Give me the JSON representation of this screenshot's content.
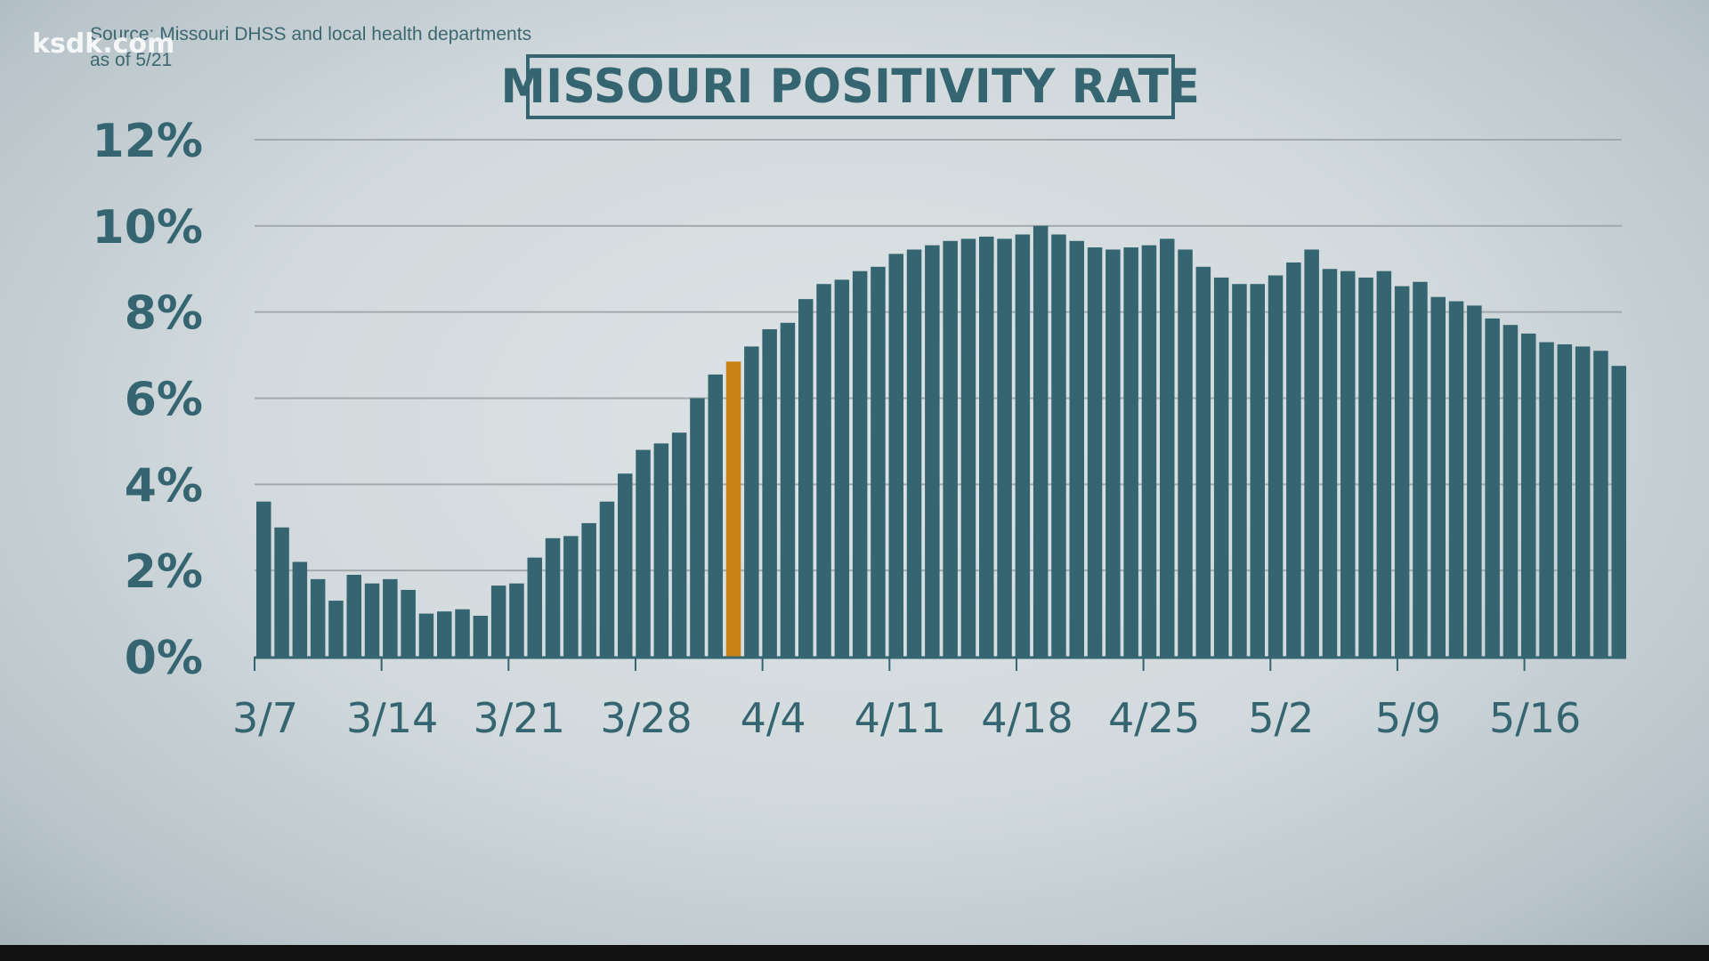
{
  "watermark": "ksdk.com",
  "source_line1": "Source: Missouri DHSS and local health departments",
  "source_line2": "as of 5/21",
  "title": "MISSOURI POSITIVITY RATE",
  "colors": {
    "bar": "#356570",
    "highlight": "#c98418",
    "text": "#356570",
    "grid": "#a3aaad"
  },
  "chart_data": {
    "type": "bar",
    "title": "MISSOURI POSITIVITY RATE",
    "xlabel": "",
    "ylabel": "",
    "ylim": [
      0,
      12
    ],
    "y_ticks": [
      "0%",
      "2%",
      "4%",
      "6%",
      "8%",
      "10%",
      "12%"
    ],
    "y_tick_values": [
      0,
      2,
      4,
      6,
      8,
      10,
      12
    ],
    "grid": true,
    "x_tick_labels": [
      "3/7",
      "3/14",
      "3/21",
      "3/28",
      "4/4",
      "4/11",
      "4/18",
      "4/25",
      "5/2",
      "5/9",
      "5/16"
    ],
    "x_tick_indices": [
      0,
      7,
      14,
      21,
      28,
      35,
      42,
      49,
      56,
      63,
      70
    ],
    "start_date": "3/7",
    "end_date": "5/21",
    "highlight_index": 26,
    "highlight_date": "4/2",
    "series": [
      {
        "name": "Positivity rate (%)",
        "values": [
          3.6,
          3.0,
          2.2,
          1.8,
          1.3,
          1.9,
          1.7,
          1.8,
          1.55,
          1.0,
          1.05,
          1.1,
          0.95,
          1.65,
          1.7,
          2.3,
          2.75,
          2.8,
          3.1,
          3.6,
          4.25,
          4.8,
          4.95,
          5.2,
          6.0,
          6.55,
          6.85,
          7.2,
          7.6,
          7.75,
          8.3,
          8.65,
          8.75,
          8.95,
          9.05,
          9.35,
          9.45,
          9.55,
          9.65,
          9.7,
          9.75,
          9.7,
          9.8,
          10.0,
          9.8,
          9.65,
          9.5,
          9.45,
          9.5,
          9.55,
          9.7,
          9.45,
          9.05,
          8.8,
          8.65,
          8.65,
          8.85,
          9.15,
          9.45,
          9.0,
          8.95,
          8.8,
          8.95,
          8.6,
          8.7,
          8.35,
          8.25,
          8.15,
          7.85,
          7.7,
          7.5,
          7.3,
          7.25,
          7.2,
          7.1,
          6.75
        ]
      }
    ]
  }
}
